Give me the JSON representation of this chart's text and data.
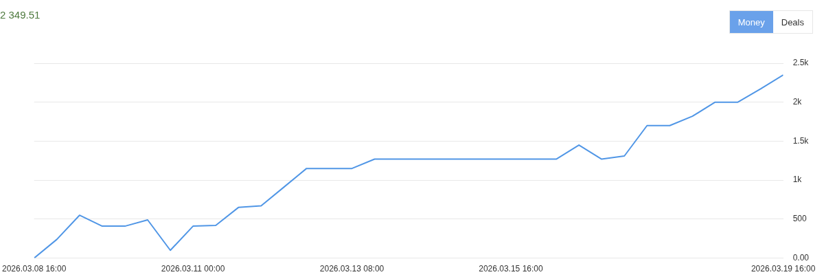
{
  "chart_data": {
    "type": "line",
    "title": "2 349.51",
    "annotations": [
      "Money",
      "Deals"
    ],
    "x": [
      "2026-03-08T16:00",
      "2026-03-09T00:00",
      "2026-03-09T08:00",
      "2026-03-09T16:00",
      "2026-03-10T00:00",
      "2026-03-10T08:00",
      "2026-03-10T16:00",
      "2026-03-11T00:00",
      "2026-03-11T08:00",
      "2026-03-11T16:00",
      "2026-03-12T00:00",
      "2026-03-12T08:00",
      "2026-03-12T16:00",
      "2026-03-13T00:00",
      "2026-03-13T08:00",
      "2026-03-13T16:00",
      "2026-03-14T00:00",
      "2026-03-14T08:00",
      "2026-03-14T16:00",
      "2026-03-15T00:00",
      "2026-03-15T08:00",
      "2026-03-15T16:00",
      "2026-03-16T00:00",
      "2026-03-16T08:00",
      "2026-03-16T16:00",
      "2026-03-17T00:00",
      "2026-03-17T08:00",
      "2026-03-17T16:00",
      "2026-03-18T00:00",
      "2026-03-18T08:00",
      "2026-03-18T16:00",
      "2026-03-19T00:00",
      "2026-03-19T08:00",
      "2026-03-19T16:00"
    ],
    "series": [
      {
        "color": "#5096e6",
        "values": [
          0,
          240,
          550,
          410,
          410,
          490,
          100,
          410,
          420,
          650,
          670,
          910,
          1150,
          1150,
          1150,
          1270,
          1270,
          1270,
          1270,
          1270,
          1270,
          1270,
          1270,
          1270,
          1450,
          1270,
          1310,
          1700,
          1700,
          1820,
          2000,
          2000,
          2170,
          2349.51
        ]
      }
    ],
    "xlim": [
      "2026-03-08T16:00",
      "2026-03-19T16:00"
    ],
    "xticks": [
      {
        "value": "2026-03-08T16:00",
        "label": "2026.03.08 16:00"
      },
      {
        "value": "2026-03-11T00:00",
        "label": "2026.03.11 00:00"
      },
      {
        "value": "2026-03-13T08:00",
        "label": "2026.03.13 08:00"
      },
      {
        "value": "2026-03-15T16:00",
        "label": "2026.03.15 16:00"
      },
      {
        "value": "2026-03-19T16:00",
        "label": "2026.03.19 16:00"
      }
    ],
    "ylim": [
      0,
      2500
    ],
    "yticks": [
      {
        "value": 0,
        "label": "0.00"
      },
      500,
      {
        "value": 1000,
        "label": "1k"
      },
      {
        "value": 1500,
        "label": "1.5k"
      },
      {
        "value": 2000,
        "label": "2k"
      },
      {
        "value": 2500,
        "label": "2.5k"
      }
    ],
    "grid": "y",
    "legend": false,
    "marker": "none",
    "line_style": "solid"
  }
}
